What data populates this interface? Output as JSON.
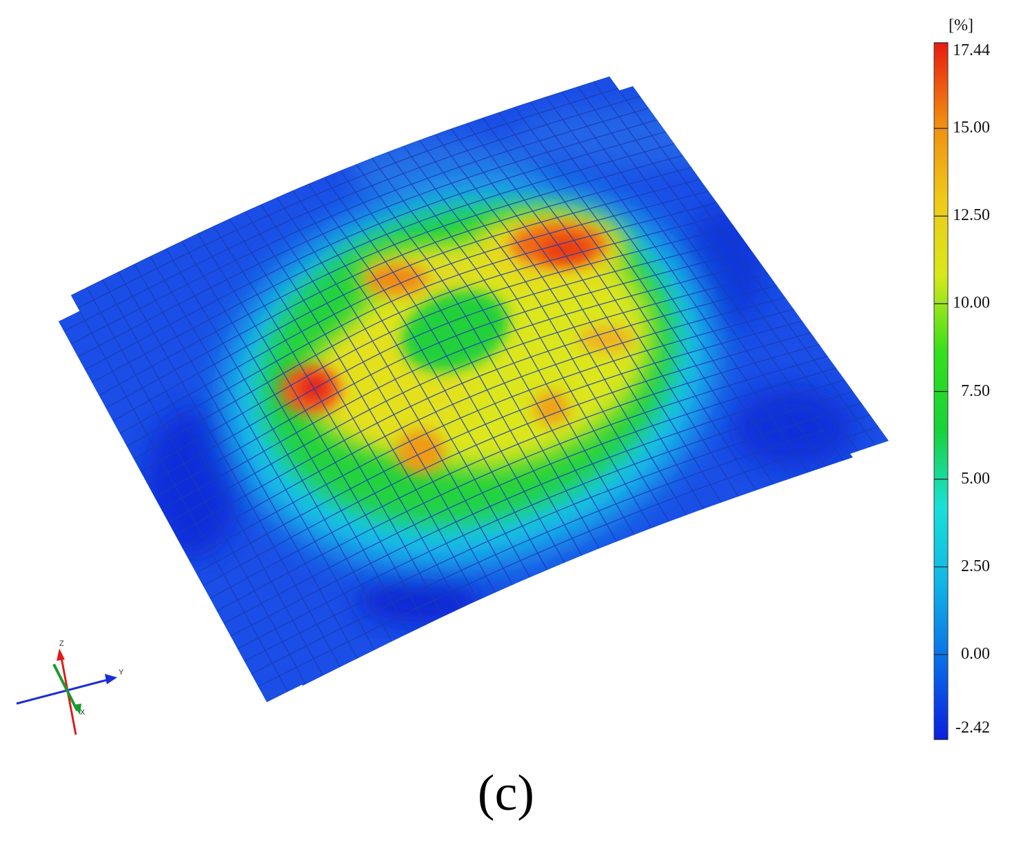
{
  "figure": {
    "panel_label": "(c)",
    "colorbar": {
      "unit": "[%]",
      "ticks": [
        "17.44",
        "15.00",
        "12.50",
        "10.00",
        "7.50",
        "5.00",
        "2.50",
        "0.00",
        "-2.42"
      ],
      "tick_values": [
        17.44,
        15.0,
        12.5,
        10.0,
        7.5,
        5.0,
        2.5,
        0.0,
        -2.42
      ],
      "min": -2.42,
      "max": 17.44,
      "colors": [
        "#0a1ee0",
        "#0a6ce8",
        "#10b4e6",
        "#19e0d8",
        "#18d23a",
        "#34e01a",
        "#d8e81a",
        "#f0c81a",
        "#f08a10",
        "#e81a10"
      ]
    },
    "axes_triad": {
      "labels": [
        "Z",
        "Y",
        "X"
      ]
    }
  }
}
